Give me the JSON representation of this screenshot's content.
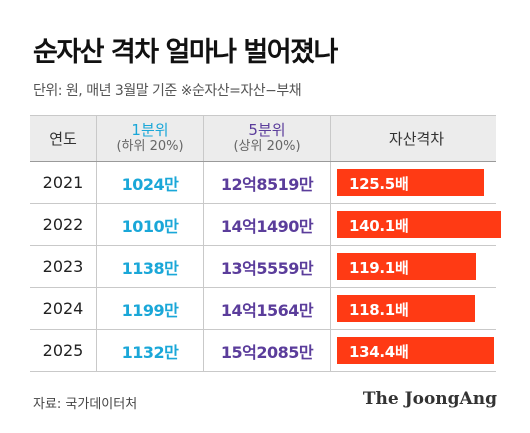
{
  "title": "순자산 격차 얼마나 벌어졌나",
  "subtitle": "단위: 원, 매년 3월말 기준 ※순자산=자산−부채",
  "source": "자료: 국가데이터처",
  "brand": "The JoongAng",
  "colors": {
    "low": "#1aa7d8",
    "high": "#5b3d9b",
    "bar": "#ff3a14",
    "header_bg": "#ececec"
  },
  "chart_data": {
    "type": "table",
    "columns": {
      "year": "연도",
      "low": {
        "main": "1분위",
        "sub": "(하위 20%)"
      },
      "high": {
        "main": "5분위",
        "sub": "(상위 20%)"
      },
      "gap": "자산격차"
    },
    "gap_max": 140.1,
    "rows": [
      {
        "year": "2021",
        "low": "1024만",
        "high": "12억8519만",
        "gap": 125.5,
        "gap_label": "125.5배"
      },
      {
        "year": "2022",
        "low": "1010만",
        "high": "14억1490만",
        "gap": 140.1,
        "gap_label": "140.1배"
      },
      {
        "year": "2023",
        "low": "1138만",
        "high": "13억5559만",
        "gap": 119.1,
        "gap_label": "119.1배"
      },
      {
        "year": "2024",
        "low": "1199만",
        "high": "14억1564만",
        "gap": 118.1,
        "gap_label": "118.1배"
      },
      {
        "year": "2025",
        "low": "1132만",
        "high": "15억2085만",
        "gap": 134.4,
        "gap_label": "134.4배"
      }
    ]
  }
}
